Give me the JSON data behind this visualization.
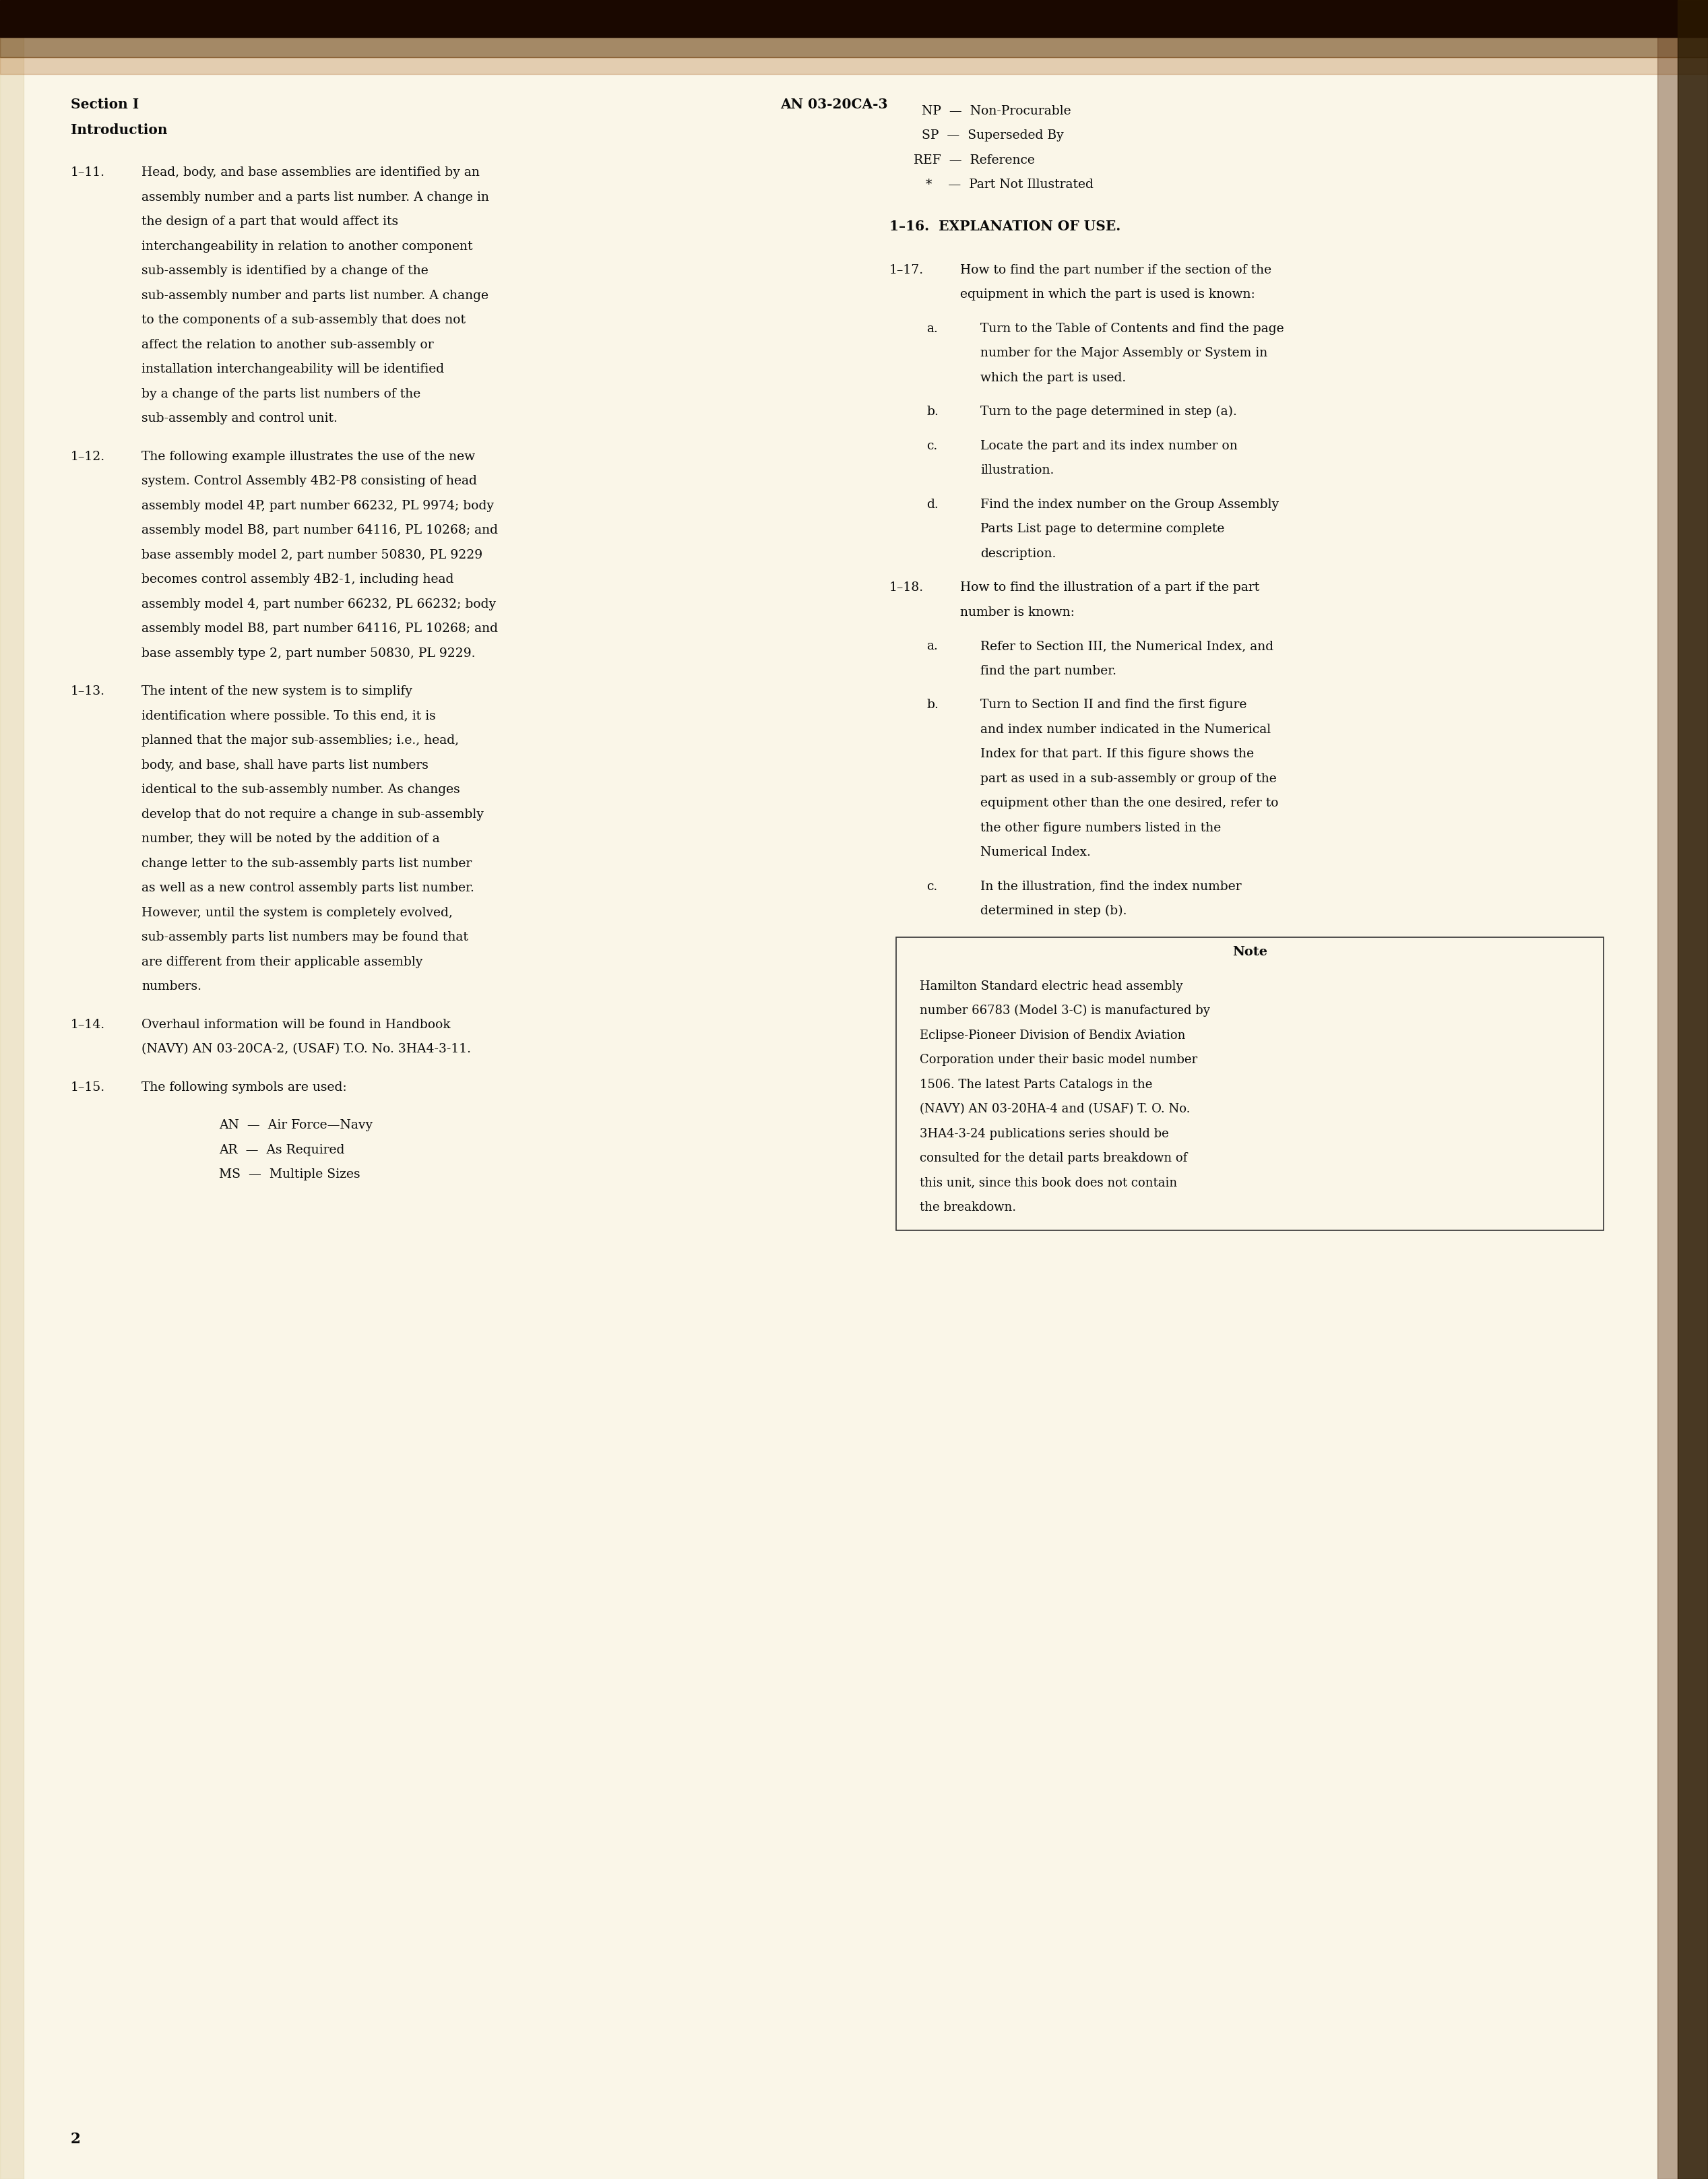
{
  "bg_color": "#faf6e8",
  "text_color": "#0a0a0a",
  "header_left_line1": "Section I",
  "header_left_line2": "Introduction",
  "header_center": "AN 03-20CA-3",
  "footer_page_num": "2",
  "font_size_body": 13.5,
  "font_size_header": 14.5,
  "font_size_note": 13.0,
  "left_paragraphs": [
    {
      "label": "1–11.",
      "text": "Head, body, and base assemblies are identified by an assembly number and a parts list number. A change in the design of a part that would affect its interchangeability in relation to another component sub-assembly is identified by a change of the sub-assembly number and parts list number. A change to the components of a sub-assembly that does not affect the relation to another sub-assembly or installation interchangeability will be identified by a change of the parts list numbers of the sub-assembly and control unit."
    },
    {
      "label": "1–12.",
      "text": "The following example illustrates the use of the new system. Control Assembly 4B2-P8 consisting of head assembly model 4P, part number 66232, PL 9974; body assembly model B8, part number 64116, PL 10268; and base assembly model 2, part number 50830, PL 9229 becomes control assembly 4B2-1, including head assembly model 4, part number 66232, PL 66232; body assembly model B8, part number 64116, PL 10268; and base assembly type 2, part number 50830, PL 9229."
    },
    {
      "label": "1–13.",
      "text": "The intent of the new system is to simplify identification where possible. To this end, it is planned that the major sub-assemblies; i.e., head, body, and base, shall have parts list numbers identical to the sub-assembly number. As changes develop that do not require a change in sub-assembly number, they will be noted by the addition of a change letter to the sub-assembly parts list number as well as a new control assembly parts list number. However, until the system is completely evolved, sub-assembly parts list numbers may be found that are different from their applicable assembly numbers."
    },
    {
      "label": "1–14.",
      "text": "Overhaul information will be found in Handbook (NAVY) AN 03-20CA-2, (USAF) T.O. No. 3HA4-3-11."
    },
    {
      "label": "1–15.",
      "text": "The following symbols are used:"
    }
  ],
  "symbols_lines": [
    "AN  —  Air Force—Navy",
    "AR  —  As Required",
    "MS  —  Multiple Sizes"
  ],
  "right_col_top_symbols": [
    "   NP  —  Non-Procurable",
    "   SP  —  Superseded By",
    " REF  —  Reference",
    "    *    —  Part Not Illustrated"
  ],
  "section_1_16_header": "1–16.  EXPLANATION OF USE.",
  "right_paragraphs": [
    {
      "label": "1–17.",
      "type": "main",
      "text": "How to find the part number if the section of the equipment in which the part is used is known:"
    },
    {
      "sublabel": "a.",
      "type": "sub",
      "text": "Turn to the Table of Contents and find the page number for the Major Assembly or System in which the part is used."
    },
    {
      "sublabel": "b.",
      "type": "sub",
      "text": "Turn to the page determined in step (a)."
    },
    {
      "sublabel": "c.",
      "type": "sub",
      "text": "Locate the part and its index number on illustration."
    },
    {
      "sublabel": "d.",
      "type": "sub",
      "text": "Find the index number on the Group Assembly Parts List page to determine complete description."
    },
    {
      "label": "1–18.",
      "type": "main",
      "text": "How to find the illustration of a part if the part number is known:"
    },
    {
      "sublabel": "a.",
      "type": "sub",
      "text": "Refer to Section III, the Numerical Index, and find the part number."
    },
    {
      "sublabel": "b.",
      "type": "sub",
      "text": "Turn to Section II and find the first figure and index number indicated in the Numerical Index for that part. If this figure shows the part as used in a sub-assembly or group of the equipment other than the one desired, refer to the other figure numbers listed in the Numerical Index."
    },
    {
      "sublabel": "c.",
      "type": "sub",
      "text": "In the illustration, find the index number determined in step (b)."
    }
  ],
  "note_header": "Note",
  "note_text": "Hamilton Standard electric head assembly number 66783 (Model 3-C) is manufactured by Eclipse-Pioneer Division of Bendix Aviation Corporation under their basic model number 1506. The latest Parts Catalogs in the (NAVY) AN 03-20HA-4 and (USAF) T. O. No. 3HA4-3-24 publications series should be consulted for the detail parts breakdown of this unit, since this book does not contain the breakdown."
}
